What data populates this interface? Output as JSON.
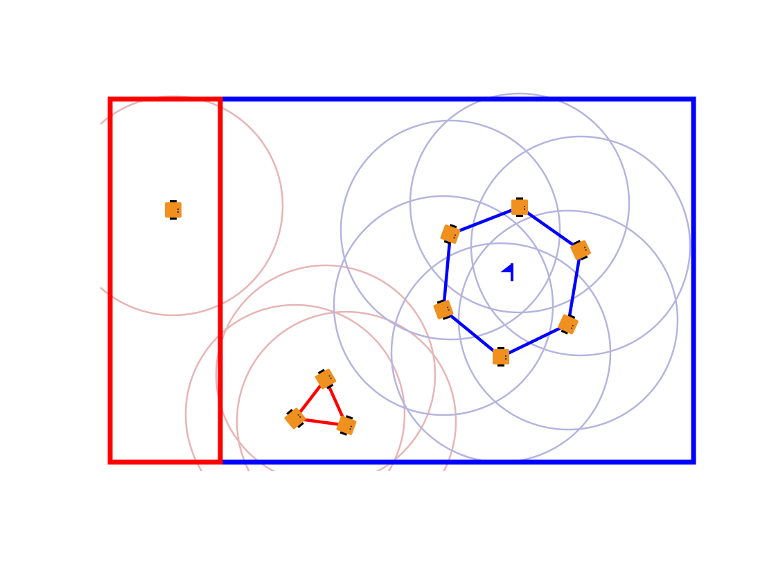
{
  "colors": {
    "red_team": "#ff0000",
    "blue_team": "#0000ff",
    "red_range": "#e8b4b4",
    "blue_range": "#b4b4e0",
    "robot_body": "#f0901e",
    "robot_wheel": "#000000"
  },
  "regions": [
    {
      "name": "red-region",
      "team": "red"
    },
    {
      "name": "blue-region",
      "team": "blue"
    }
  ],
  "robots": [
    {
      "id": "red-solo",
      "team": "red",
      "icon": "robot-icon"
    },
    {
      "id": "red-tri-1",
      "team": "red",
      "icon": "robot-icon"
    },
    {
      "id": "red-tri-2",
      "team": "red",
      "icon": "robot-icon"
    },
    {
      "id": "red-tri-3",
      "team": "red",
      "icon": "robot-icon"
    },
    {
      "id": "blue-hex-1",
      "team": "blue",
      "icon": "robot-icon"
    },
    {
      "id": "blue-hex-2",
      "team": "blue",
      "icon": "robot-icon"
    },
    {
      "id": "blue-hex-3",
      "team": "blue",
      "icon": "robot-icon"
    },
    {
      "id": "blue-hex-4",
      "team": "blue",
      "icon": "robot-icon"
    },
    {
      "id": "blue-hex-5",
      "team": "blue",
      "icon": "robot-icon"
    },
    {
      "id": "blue-hex-6",
      "team": "blue",
      "icon": "robot-icon"
    }
  ],
  "formations": [
    {
      "name": "red-triangle-formation",
      "team": "red",
      "shape": "triangle"
    },
    {
      "name": "blue-hexagon-formation",
      "team": "blue",
      "shape": "hexagon"
    }
  ],
  "marker": {
    "icon": "flag-icon",
    "color": "#0000ff"
  }
}
